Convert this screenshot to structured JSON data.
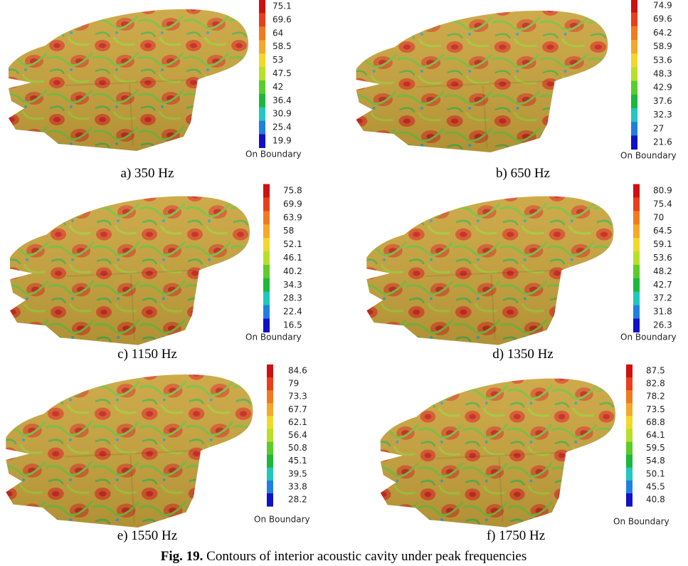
{
  "panels": [
    {
      "caption": "a) 350 Hz",
      "legend": {
        "labels": [
          75.1,
          69.6,
          64,
          58.5,
          53,
          47.5,
          42,
          36.4,
          30.9,
          25.4,
          19.9
        ],
        "boundary_label": "On Boundary"
      }
    },
    {
      "caption": "b) 650 Hz",
      "legend": {
        "labels": [
          74.9,
          69.6,
          64.2,
          58.9,
          53.6,
          48.3,
          42.9,
          37.6,
          32.3,
          27,
          21.6
        ],
        "boundary_label": "On Boundary"
      }
    },
    {
      "caption": "c) 1150 Hz",
      "legend": {
        "labels": [
          75.8,
          69.9,
          63.9,
          58,
          52.1,
          46.1,
          40.2,
          34.3,
          28.3,
          22.4,
          16.5
        ],
        "boundary_label": "On Boundary"
      }
    },
    {
      "caption": "d) 1350 Hz",
      "legend": {
        "labels": [
          80.9,
          75.4,
          70,
          64.5,
          59.1,
          53.6,
          48.2,
          42.7,
          37.2,
          31.8,
          26.3
        ],
        "boundary_label": "On Boundary"
      }
    },
    {
      "caption": "e) 1550 Hz",
      "legend": {
        "labels": [
          84.6,
          79,
          73.3,
          67.7,
          62.1,
          56.4,
          50.8,
          45.1,
          39.5,
          33.8,
          28.2
        ],
        "boundary_label": "On Boundary"
      }
    },
    {
      "caption": "f) 1750 Hz",
      "legend": {
        "labels": [
          87.5,
          82.8,
          78.2,
          73.5,
          68.8,
          64.1,
          59.5,
          54.8,
          50.1,
          45.5,
          40.8
        ],
        "boundary_label": "On Boundary"
      }
    }
  ],
  "figure_caption": {
    "label": "Fig. 19.",
    "text": " Contours of interior acoustic cavity under peak frequencies"
  }
}
